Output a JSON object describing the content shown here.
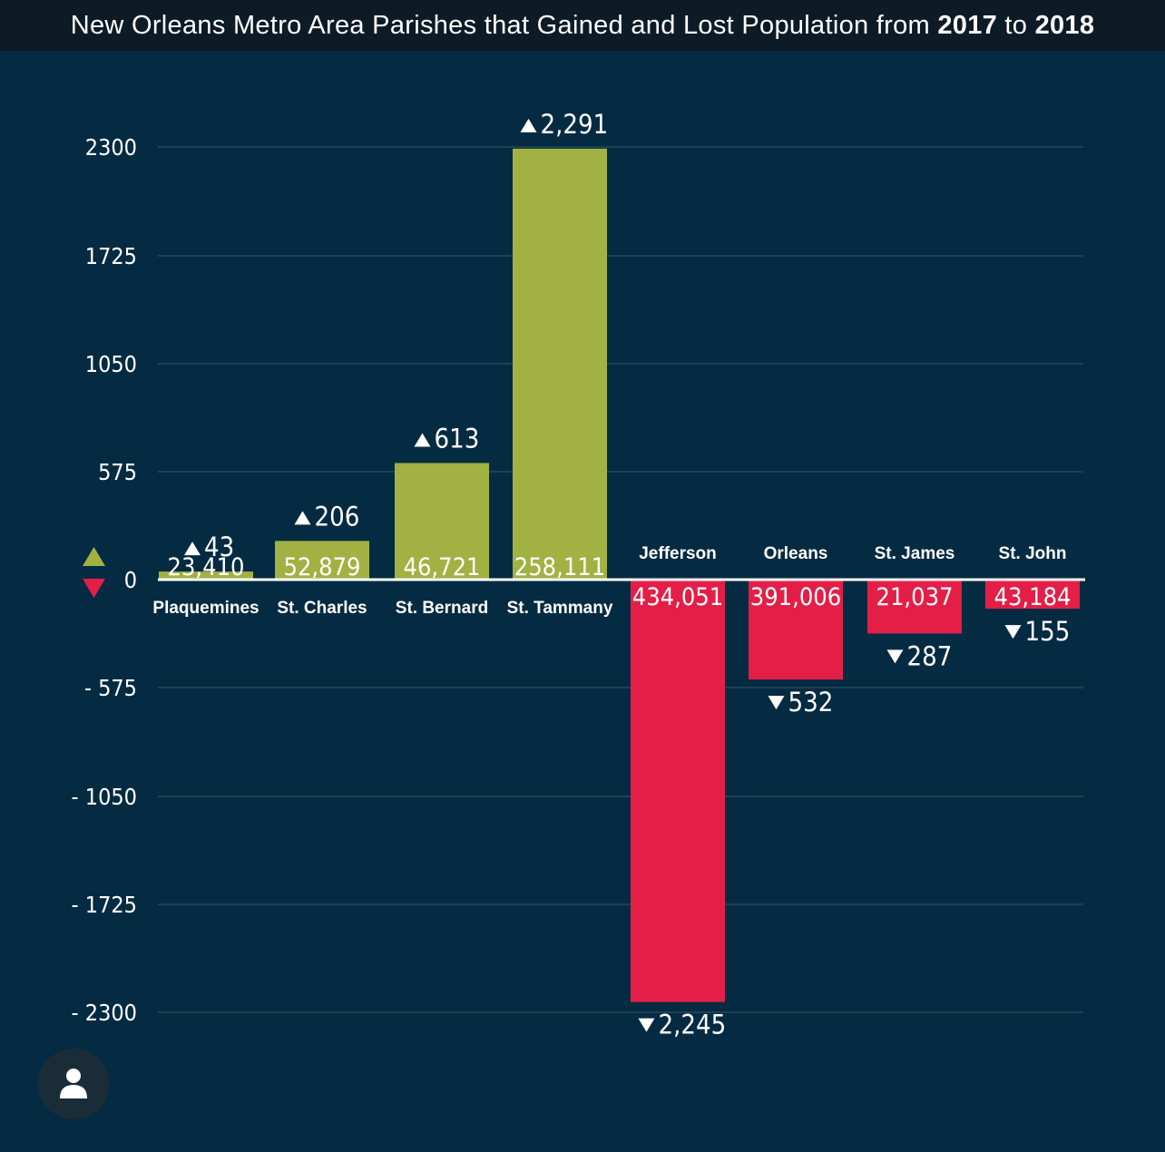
{
  "header": {
    "title_prefix": "New Orleans Metro Area Parishes that Gained and Lost Population from",
    "year_start": "2017",
    "title_join": "to",
    "year_end": "2018"
  },
  "colors": {
    "background": "#052b42",
    "title_bar": "#0d1b26",
    "gain": "#a1b243",
    "loss": "#e31f47",
    "text": "#ffffff",
    "grid": "#3a5568"
  },
  "chart_data": {
    "type": "bar",
    "title": "New Orleans Metro Area Parishes that Gained and Lost Population from 2017 to 2018",
    "yticks": [
      2300,
      1725,
      1050,
      575,
      0,
      -575,
      -1050,
      -1725,
      -2300
    ],
    "ytick_labels": [
      "2300",
      "1725",
      "1050",
      "575",
      "0",
      "- 575",
      "- 1050",
      "- 1725",
      "- 2300"
    ],
    "ylim": [
      -2300,
      2300
    ],
    "grid": true,
    "legend_icons": [
      "gain-triangle-up",
      "loss-triangle-down"
    ],
    "categories": [
      "Plaquemines",
      "St. Charles",
      "St. Bernard",
      "St. Tammany",
      "Jefferson",
      "Orleans",
      "St. James",
      "St. John"
    ],
    "values": [
      43,
      206,
      613,
      2291,
      -2245,
      -532,
      -287,
      -155
    ],
    "change_labels": [
      "43",
      "206",
      "613",
      "2,291",
      "2,245",
      "532",
      "287",
      "155"
    ],
    "population_labels": [
      "23,410",
      "52,879",
      "46,721",
      "258,111",
      "434,051",
      "391,006",
      "21,037",
      "43,184"
    ]
  }
}
